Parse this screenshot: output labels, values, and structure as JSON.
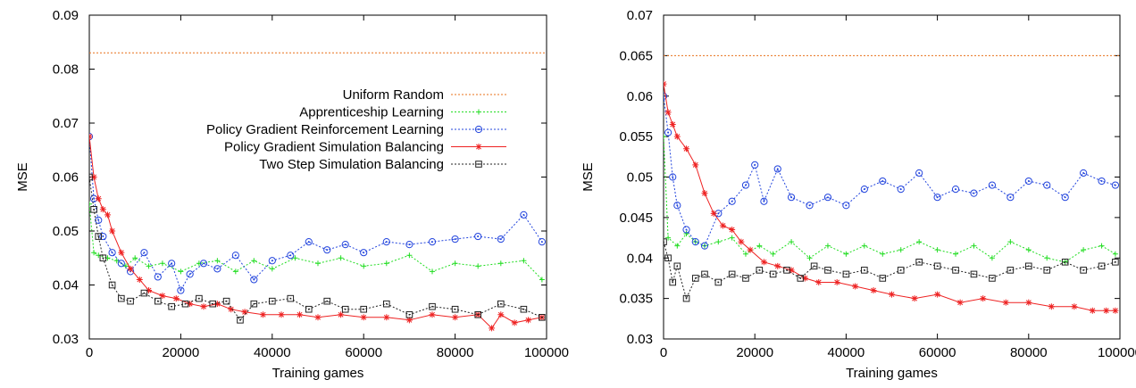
{
  "chart_data": [
    {
      "type": "line",
      "xlabel": "Training games",
      "ylabel": "MSE",
      "xlim": [
        0,
        100000
      ],
      "ylim": [
        0.03,
        0.09
      ],
      "xticks": [
        "0",
        "20000",
        "40000",
        "60000",
        "80000",
        "100000"
      ],
      "yticks": [
        "0.03",
        "0.04",
        "0.05",
        "0.06",
        "0.07",
        "0.08",
        "0.09"
      ],
      "grid": false,
      "legend": "center-right",
      "series": [
        {
          "name": "Uniform Random",
          "color": "#e8701a",
          "marker": "none",
          "dash": "dotted",
          "x": [
            0,
            100000
          ],
          "y": [
            0.083,
            0.083
          ]
        },
        {
          "name": "Apprenticeship Learning",
          "color": "#22dd22",
          "marker": "plus",
          "dash": "dotted",
          "x": [
            0,
            1000,
            2000,
            4000,
            6000,
            8000,
            10000,
            13000,
            16000,
            20000,
            24000,
            28000,
            32000,
            36000,
            40000,
            45000,
            50000,
            55000,
            60000,
            65000,
            70000,
            75000,
            80000,
            85000,
            90000,
            95000,
            99000
          ],
          "y": [
            0.055,
            0.046,
            0.0455,
            0.045,
            0.0445,
            0.0435,
            0.045,
            0.0435,
            0.044,
            0.0425,
            0.044,
            0.0445,
            0.0425,
            0.0445,
            0.043,
            0.045,
            0.044,
            0.045,
            0.0435,
            0.044,
            0.0455,
            0.0425,
            0.044,
            0.0435,
            0.044,
            0.0445,
            0.041
          ]
        },
        {
          "name": "Policy Gradient Reinforcement Learning",
          "color": "#2244dd",
          "marker": "circle",
          "dash": "dotted",
          "x": [
            0,
            1000,
            2000,
            3000,
            5000,
            7000,
            9000,
            12000,
            15000,
            18000,
            20000,
            22000,
            25000,
            28000,
            32000,
            36000,
            40000,
            44000,
            48000,
            52000,
            56000,
            60000,
            65000,
            70000,
            75000,
            80000,
            85000,
            90000,
            95000,
            99000
          ],
          "y": [
            0.0675,
            0.056,
            0.052,
            0.049,
            0.046,
            0.044,
            0.0425,
            0.046,
            0.0415,
            0.044,
            0.039,
            0.042,
            0.044,
            0.043,
            0.0455,
            0.041,
            0.0445,
            0.0455,
            0.048,
            0.0465,
            0.0475,
            0.046,
            0.048,
            0.0475,
            0.048,
            0.0485,
            0.049,
            0.0485,
            0.053,
            0.048
          ]
        },
        {
          "name": "Policy Gradient Simulation Balancing",
          "color": "#ee2222",
          "marker": "star",
          "dash": "solid",
          "x": [
            0,
            1000,
            2000,
            3000,
            4000,
            5000,
            7000,
            9000,
            11000,
            13000,
            16000,
            19000,
            22000,
            25000,
            28000,
            31000,
            34000,
            38000,
            42000,
            46000,
            50000,
            55000,
            60000,
            65000,
            70000,
            75000,
            80000,
            85000,
            88000,
            90000,
            93000,
            96000,
            99000
          ],
          "y": [
            0.0675,
            0.06,
            0.056,
            0.054,
            0.053,
            0.05,
            0.046,
            0.043,
            0.041,
            0.039,
            0.038,
            0.0375,
            0.0365,
            0.036,
            0.0365,
            0.0355,
            0.035,
            0.0345,
            0.0345,
            0.0345,
            0.034,
            0.0345,
            0.034,
            0.034,
            0.0335,
            0.0345,
            0.034,
            0.0345,
            0.032,
            0.0345,
            0.033,
            0.0335,
            0.034
          ]
        },
        {
          "name": "Two Step Simulation Balancing",
          "color": "#222222",
          "marker": "square",
          "dash": "dotted",
          "x": [
            0,
            1000,
            2000,
            3000,
            5000,
            7000,
            9000,
            12000,
            15000,
            18000,
            21000,
            24000,
            27000,
            30000,
            33000,
            36000,
            40000,
            44000,
            48000,
            52000,
            56000,
            60000,
            65000,
            70000,
            75000,
            80000,
            85000,
            90000,
            95000,
            99000
          ],
          "y": [
            0.06,
            0.054,
            0.049,
            0.045,
            0.04,
            0.0375,
            0.037,
            0.0385,
            0.037,
            0.036,
            0.0365,
            0.0375,
            0.0365,
            0.037,
            0.0335,
            0.0365,
            0.037,
            0.0375,
            0.0355,
            0.037,
            0.0355,
            0.0355,
            0.0365,
            0.0345,
            0.036,
            0.0355,
            0.0345,
            0.0365,
            0.0355,
            0.034
          ]
        }
      ]
    },
    {
      "type": "line",
      "xlabel": "Training games",
      "ylabel": "MSE",
      "xlim": [
        0,
        100000
      ],
      "ylim": [
        0.03,
        0.07
      ],
      "xticks": [
        "0",
        "20000",
        "40000",
        "60000",
        "80000",
        "100000"
      ],
      "yticks": [
        "0.03",
        "0.035",
        "0.04",
        "0.045",
        "0.05",
        "0.055",
        "0.06",
        "0.065",
        "0.07"
      ],
      "grid": false,
      "legend": "none",
      "series": [
        {
          "color": "#e8701a",
          "marker": "none",
          "dash": "dotted",
          "x": [
            0,
            100000
          ],
          "y": [
            0.065,
            0.065
          ]
        },
        {
          "color": "#22dd22",
          "marker": "plus",
          "dash": "dotted",
          "x": [
            0,
            1000,
            3000,
            5000,
            7000,
            9000,
            12000,
            15000,
            18000,
            21000,
            24000,
            28000,
            32000,
            36000,
            40000,
            44000,
            48000,
            52000,
            56000,
            60000,
            64000,
            68000,
            72000,
            76000,
            80000,
            84000,
            88000,
            92000,
            96000,
            99000
          ],
          "y": [
            0.055,
            0.0425,
            0.0415,
            0.043,
            0.042,
            0.0415,
            0.042,
            0.0425,
            0.0405,
            0.0415,
            0.0405,
            0.042,
            0.04,
            0.0415,
            0.0405,
            0.0415,
            0.0405,
            0.041,
            0.042,
            0.041,
            0.0405,
            0.0415,
            0.04,
            0.042,
            0.041,
            0.04,
            0.0395,
            0.041,
            0.0415,
            0.0405
          ]
        },
        {
          "color": "#2244dd",
          "marker": "circle",
          "dash": "dotted",
          "x": [
            0,
            1000,
            2000,
            3000,
            5000,
            7000,
            9000,
            12000,
            15000,
            18000,
            20000,
            22000,
            25000,
            28000,
            32000,
            36000,
            40000,
            44000,
            48000,
            52000,
            56000,
            60000,
            64000,
            68000,
            72000,
            76000,
            80000,
            84000,
            88000,
            92000,
            96000,
            99000
          ],
          "y": [
            0.06,
            0.0555,
            0.05,
            0.0465,
            0.0435,
            0.042,
            0.0415,
            0.0455,
            0.047,
            0.049,
            0.0515,
            0.047,
            0.051,
            0.0475,
            0.0465,
            0.0475,
            0.0465,
            0.0485,
            0.0495,
            0.0485,
            0.0505,
            0.0475,
            0.0485,
            0.048,
            0.049,
            0.0475,
            0.0495,
            0.049,
            0.0475,
            0.0505,
            0.0495,
            0.049
          ]
        },
        {
          "color": "#ee2222",
          "marker": "star",
          "dash": "solid",
          "x": [
            0,
            1000,
            2000,
            3000,
            5000,
            7000,
            9000,
            11000,
            13000,
            15000,
            17000,
            19000,
            22000,
            25000,
            28000,
            31000,
            34000,
            38000,
            42000,
            46000,
            50000,
            55000,
            60000,
            65000,
            70000,
            75000,
            80000,
            85000,
            90000,
            94000,
            97000,
            99000
          ],
          "y": [
            0.0615,
            0.058,
            0.0565,
            0.055,
            0.0535,
            0.0515,
            0.048,
            0.0455,
            0.044,
            0.0435,
            0.042,
            0.041,
            0.0395,
            0.039,
            0.0385,
            0.0375,
            0.037,
            0.037,
            0.0365,
            0.036,
            0.0355,
            0.035,
            0.0355,
            0.0345,
            0.035,
            0.0345,
            0.0345,
            0.034,
            0.034,
            0.0335,
            0.0335,
            0.0335
          ]
        },
        {
          "color": "#222222",
          "marker": "square",
          "dash": "dotted",
          "x": [
            0,
            1000,
            2000,
            3000,
            5000,
            7000,
            9000,
            12000,
            15000,
            18000,
            21000,
            24000,
            27000,
            30000,
            33000,
            36000,
            40000,
            44000,
            48000,
            52000,
            56000,
            60000,
            64000,
            68000,
            72000,
            76000,
            80000,
            84000,
            88000,
            92000,
            96000,
            99000
          ],
          "y": [
            0.042,
            0.04,
            0.037,
            0.039,
            0.035,
            0.0375,
            0.038,
            0.037,
            0.038,
            0.0375,
            0.0385,
            0.038,
            0.0385,
            0.0375,
            0.039,
            0.0385,
            0.038,
            0.0385,
            0.0375,
            0.0385,
            0.0395,
            0.039,
            0.0385,
            0.038,
            0.0375,
            0.0385,
            0.039,
            0.0385,
            0.0395,
            0.0385,
            0.039,
            0.0395
          ]
        }
      ]
    }
  ]
}
